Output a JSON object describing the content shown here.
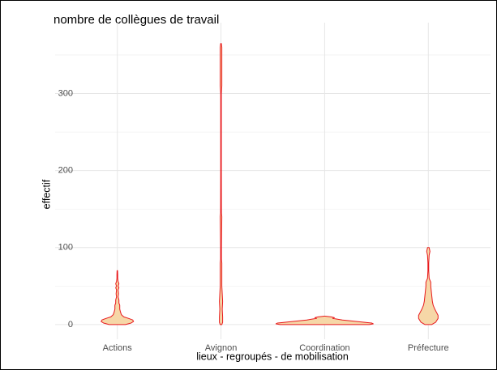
{
  "chart_data": {
    "type": "violin",
    "title": "nombre de collègues de travail",
    "x_label": "lieux - regroupés - de mobilisation",
    "y_label": "effectif",
    "categories": [
      "Actions",
      "Avignon",
      "Coordination",
      "Préfecture"
    ],
    "fill": "#f6d7a7",
    "stroke": "#e8191c",
    "ylim": [
      -19,
      392
    ],
    "yticks": [
      0,
      100,
      200,
      300
    ],
    "minor_yticks": [
      50,
      150,
      250,
      350
    ],
    "grid": true,
    "series": [
      {
        "name": "Actions",
        "y": [
          0,
          2,
          4,
          6,
          8,
          10,
          13,
          16,
          20,
          25,
          28,
          32,
          36,
          40,
          45,
          48,
          50,
          53,
          56,
          60,
          65,
          70
        ],
        "width": [
          10,
          17,
          20,
          19,
          14,
          8,
          5,
          4,
          3,
          3,
          2,
          2,
          1,
          1.5,
          1,
          2,
          1,
          2,
          1,
          0.5,
          0.5,
          0.3
        ]
      },
      {
        "name": "Avignon",
        "y": [
          0,
          3,
          10,
          20,
          30,
          40,
          50,
          80,
          85,
          100,
          140,
          145,
          200,
          300,
          310,
          360,
          365
        ],
        "width": [
          1,
          2,
          2,
          1.5,
          2,
          1.5,
          1,
          1,
          0.5,
          0.5,
          1,
          0.5,
          0.4,
          0.4,
          1,
          1,
          0.4
        ]
      },
      {
        "name": "Coordination",
        "y": [
          0,
          1,
          2,
          4,
          6,
          8,
          9,
          10,
          11
        ],
        "width": [
          55,
          60,
          58,
          40,
          22,
          10,
          12,
          8,
          0.5
        ]
      },
      {
        "name": "Préfecture",
        "y": [
          0,
          3,
          8,
          12,
          16,
          20,
          25,
          30,
          40,
          50,
          55,
          60,
          70,
          80,
          90,
          95,
          100
        ],
        "width": [
          4,
          9,
          12,
          12,
          10,
          8,
          6,
          5,
          4,
          3,
          3,
          1,
          0.5,
          0.5,
          1,
          2,
          1
        ]
      }
    ]
  }
}
